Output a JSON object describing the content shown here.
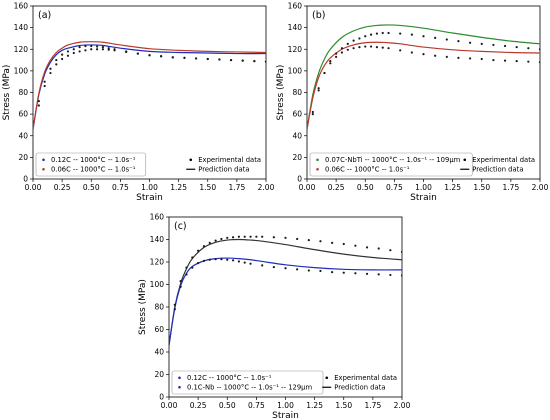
{
  "chart_data": [
    {
      "type": "line",
      "panel_label": "(a)",
      "xlabel": "Strain",
      "ylabel": "Stress (MPa)",
      "xlim": [
        0,
        2.0
      ],
      "ylim": [
        0,
        160
      ],
      "xticks": [
        "0.00",
        "0.25",
        "0.50",
        "0.75",
        "1.00",
        "1.25",
        "1.50",
        "1.75",
        "2.00"
      ],
      "yticks": [
        "0",
        "20",
        "40",
        "60",
        "80",
        "100",
        "120",
        "140",
        "160"
      ],
      "grid": false,
      "legends": [
        {
          "placement": "bottom-left",
          "items": [
            {
              "label": "0.12C -- 1000°C -- 1.0s⁻¹",
              "color": "#1f2dbd",
              "marker": "point"
            },
            {
              "label": "0.06C -- 1000°C -- 1.0s⁻¹",
              "color": "#b83a2a",
              "marker": "point"
            }
          ]
        },
        {
          "placement": "bottom-right",
          "items": [
            {
              "label": "Experimental data",
              "color": "#000000",
              "marker": "point"
            },
            {
              "label": "Prediction data",
              "color": "#000000",
              "marker": "line"
            }
          ]
        }
      ],
      "series": [
        {
          "kind": "prediction",
          "color": "#1f2dbd",
          "x": [
            0,
            0.05,
            0.1,
            0.15,
            0.2,
            0.25,
            0.3,
            0.4,
            0.5,
            0.6,
            0.75,
            1.0,
            1.25,
            1.5,
            1.75,
            2.0
          ],
          "y": [
            46,
            78,
            97,
            108,
            115,
            119,
            121,
            123.5,
            124,
            123.5,
            121,
            118,
            117,
            116.5,
            116,
            116
          ]
        },
        {
          "kind": "prediction",
          "color": "#b83a2a",
          "x": [
            0,
            0.05,
            0.1,
            0.15,
            0.2,
            0.25,
            0.3,
            0.4,
            0.5,
            0.6,
            0.75,
            1.0,
            1.25,
            1.5,
            1.75,
            2.0
          ],
          "y": [
            46,
            79,
            99,
            110,
            117,
            121,
            124,
            126.5,
            127,
            126.5,
            124,
            120.5,
            119,
            118,
            117.5,
            117
          ]
        },
        {
          "kind": "experimental",
          "color": "#1a1a1a",
          "x": [
            0.05,
            0.1,
            0.15,
            0.2,
            0.25,
            0.3,
            0.35,
            0.4,
            0.45,
            0.5,
            0.55,
            0.6,
            0.65,
            0.7,
            0.8,
            0.9,
            1.0,
            1.1,
            1.2,
            1.3,
            1.4,
            1.5,
            1.6,
            1.7,
            1.8,
            1.9,
            2.0
          ],
          "y": [
            72,
            90,
            102,
            110,
            115,
            118,
            120,
            122,
            123,
            123,
            122.5,
            122,
            121,
            120,
            118,
            116,
            114.5,
            113.5,
            112.5,
            112,
            111.5,
            111,
            110.5,
            110,
            109.5,
            109,
            108.5
          ]
        },
        {
          "kind": "experimental",
          "color": "#1a1a1a",
          "x": [
            0.05,
            0.1,
            0.15,
            0.2,
            0.25,
            0.3,
            0.35,
            0.4,
            0.45,
            0.5,
            0.55,
            0.6,
            0.65,
            0.7,
            0.8,
            0.9,
            1.0,
            1.1,
            1.2,
            1.3,
            1.4,
            1.5,
            1.6,
            1.7,
            1.8,
            1.9,
            2.0
          ],
          "y": [
            68,
            86,
            98,
            106,
            111,
            114,
            116.5,
            118,
            119,
            120,
            120,
            120,
            119.5,
            119,
            117.5,
            116,
            114.5,
            113.5,
            112.5,
            112,
            111.5,
            111,
            110.5,
            110,
            109.5,
            109,
            108.5
          ]
        }
      ]
    },
    {
      "type": "line",
      "panel_label": "(b)",
      "xlabel": "Strain",
      "ylabel": "Stress (MPa)",
      "xlim": [
        0,
        2.0
      ],
      "ylim": [
        0,
        160
      ],
      "xticks": [
        "0.00",
        "0.25",
        "0.50",
        "0.75",
        "1.00",
        "1.25",
        "1.50",
        "1.75",
        "2.00"
      ],
      "yticks": [
        "0",
        "20",
        "40",
        "60",
        "80",
        "100",
        "120",
        "140",
        "160"
      ],
      "grid": false,
      "legends": [
        {
          "placement": "bottom-left",
          "items": [
            {
              "label": "0.07C-NbTi -- 1000°C -- 1.0s⁻¹ -- 109μm",
              "color": "#2e8b2e",
              "marker": "point"
            },
            {
              "label": "0.06C -- 1000°C -- 1.0s⁻¹",
              "color": "#b83a2a",
              "marker": "point"
            }
          ]
        },
        {
          "placement": "bottom-right",
          "items": [
            {
              "label": "Experimental data",
              "color": "#000000",
              "marker": "point"
            },
            {
              "label": "Prediction data",
              "color": "#000000",
              "marker": "line"
            }
          ]
        }
      ],
      "series": [
        {
          "kind": "prediction",
          "color": "#2e8b2e",
          "x": [
            0,
            0.05,
            0.1,
            0.15,
            0.2,
            0.3,
            0.4,
            0.5,
            0.6,
            0.7,
            0.8,
            1.0,
            1.25,
            1.5,
            1.75,
            2.0
          ],
          "y": [
            46,
            78,
            98,
            111,
            120,
            131,
            137,
            140.5,
            142,
            142.5,
            142,
            139.5,
            135,
            131,
            127.5,
            125
          ]
        },
        {
          "kind": "prediction",
          "color": "#b83a2a",
          "x": [
            0,
            0.05,
            0.1,
            0.15,
            0.2,
            0.3,
            0.4,
            0.5,
            0.6,
            0.7,
            0.8,
            1.0,
            1.25,
            1.5,
            1.75,
            2.0
          ],
          "y": [
            46,
            75,
            94,
            105,
            112,
            120,
            124,
            126,
            126.5,
            126,
            125,
            122,
            119.5,
            118,
            117,
            116.5
          ]
        },
        {
          "kind": "experimental",
          "color": "#1a1a1a",
          "x": [
            0.05,
            0.1,
            0.15,
            0.2,
            0.25,
            0.3,
            0.35,
            0.4,
            0.45,
            0.5,
            0.55,
            0.6,
            0.65,
            0.7,
            0.8,
            0.9,
            1.0,
            1.1,
            1.2,
            1.3,
            1.4,
            1.5,
            1.6,
            1.7,
            1.8,
            1.9,
            2.0
          ],
          "y": [
            60,
            82,
            98,
            109,
            116,
            121,
            125,
            128,
            130,
            132,
            133.5,
            134.5,
            135,
            135,
            134.5,
            133.5,
            132,
            130.5,
            129,
            127.5,
            126,
            125,
            124,
            123,
            122,
            121,
            120
          ]
        },
        {
          "kind": "experimental",
          "color": "#1a1a1a",
          "x": [
            0.05,
            0.1,
            0.15,
            0.2,
            0.25,
            0.3,
            0.35,
            0.4,
            0.45,
            0.5,
            0.55,
            0.6,
            0.65,
            0.7,
            0.8,
            0.9,
            1.0,
            1.1,
            1.2,
            1.3,
            1.4,
            1.5,
            1.6,
            1.7,
            1.8,
            1.9,
            2.0
          ],
          "y": [
            62,
            84,
            98,
            107,
            113,
            117,
            119.5,
            121,
            122,
            122.5,
            122.5,
            122,
            121.5,
            121,
            119,
            117,
            115.5,
            114,
            113,
            112,
            111.5,
            111,
            110,
            109.5,
            109,
            108.5,
            108
          ]
        }
      ]
    },
    {
      "type": "line",
      "panel_label": "(c)",
      "xlabel": "Strain",
      "ylabel": "Stress (MPa)",
      "xlim": [
        0,
        2.0
      ],
      "ylim": [
        0,
        160
      ],
      "xticks": [
        "0.00",
        "0.25",
        "0.50",
        "0.75",
        "1.00",
        "1.25",
        "1.50",
        "1.75",
        "2.00"
      ],
      "yticks": [
        "0",
        "20",
        "40",
        "60",
        "80",
        "100",
        "120",
        "140",
        "160"
      ],
      "grid": false,
      "legends": [
        {
          "placement": "bottom-left",
          "items": [
            {
              "label": "0.12C -- 1000°C -- 1.0s⁻¹",
              "color": "#1f2dbd",
              "marker": "point"
            },
            {
              "label": "0.1C-Nb -- 1000°C -- 1.0s⁻¹ -- 129μm",
              "color": "#1f2dbd",
              "marker": "point"
            }
          ]
        },
        {
          "placement": "bottom-right",
          "items": [
            {
              "label": "Experimental data",
              "color": "#000000",
              "marker": "point"
            },
            {
              "label": "Prediction data",
              "color": "#000000",
              "marker": "line"
            }
          ]
        }
      ],
      "series": [
        {
          "kind": "prediction",
          "color": "#333333",
          "x": [
            0,
            0.05,
            0.1,
            0.15,
            0.2,
            0.3,
            0.4,
            0.5,
            0.6,
            0.7,
            0.8,
            1.0,
            1.25,
            1.5,
            1.75,
            2.0
          ],
          "y": [
            46,
            80,
            101,
            114,
            123,
            133,
            137.5,
            139.5,
            140,
            139.5,
            138.5,
            135.5,
            131,
            127,
            124,
            122
          ]
        },
        {
          "kind": "prediction",
          "color": "#1f2dbd",
          "x": [
            0,
            0.05,
            0.1,
            0.15,
            0.2,
            0.3,
            0.4,
            0.5,
            0.6,
            0.7,
            0.8,
            1.0,
            1.25,
            1.5,
            1.75,
            2.0
          ],
          "y": [
            46,
            79,
            99,
            110,
            116,
            121,
            123,
            123.5,
            123,
            122,
            120.5,
            117.5,
            115,
            113.5,
            113,
            113
          ]
        },
        {
          "kind": "experimental",
          "color": "#1a1a1a",
          "x": [
            0.05,
            0.1,
            0.15,
            0.2,
            0.25,
            0.3,
            0.35,
            0.4,
            0.45,
            0.5,
            0.55,
            0.6,
            0.65,
            0.7,
            0.75,
            0.8,
            0.9,
            1.0,
            1.1,
            1.2,
            1.3,
            1.4,
            1.5,
            1.6,
            1.7,
            1.8,
            1.9,
            2.0
          ],
          "y": [
            82,
            103,
            115,
            124,
            130,
            134,
            137,
            139,
            140.5,
            141.5,
            142,
            142.5,
            142.5,
            142.5,
            142.5,
            142.5,
            142,
            141.5,
            140.5,
            139.5,
            138.5,
            137,
            136,
            134.5,
            133,
            132,
            130.5,
            129
          ]
        },
        {
          "kind": "experimental",
          "color": "#1a1a1a",
          "x": [
            0.05,
            0.1,
            0.15,
            0.2,
            0.25,
            0.3,
            0.35,
            0.4,
            0.45,
            0.5,
            0.55,
            0.6,
            0.65,
            0.7,
            0.8,
            0.9,
            1.0,
            1.1,
            1.2,
            1.3,
            1.4,
            1.5,
            1.6,
            1.7,
            1.8,
            1.9,
            2.0
          ],
          "y": [
            78,
            98,
            109,
            115,
            119,
            121,
            122,
            122.5,
            122.5,
            122,
            121.5,
            120.5,
            119.5,
            118.5,
            117,
            115.5,
            114.5,
            113.5,
            112.5,
            112,
            111,
            110.5,
            110,
            109.5,
            109,
            108.5,
            108
          ]
        }
      ]
    }
  ]
}
